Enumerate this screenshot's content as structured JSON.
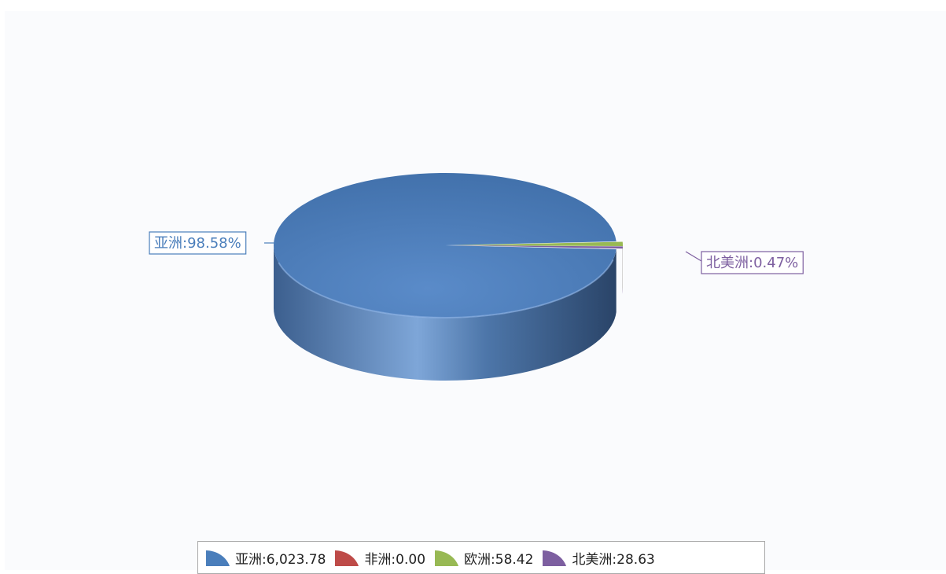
{
  "chart_data": {
    "type": "pie",
    "slices": [
      {
        "name": "亚洲",
        "value": 6023.78,
        "value_label": "6,023.78",
        "percent_label": "98.58%",
        "color": "#4a7ebb"
      },
      {
        "name": "非洲",
        "value": 0.0,
        "value_label": "0.00",
        "percent_label": "",
        "color": "#be4b48"
      },
      {
        "name": "欧洲",
        "value": 58.42,
        "value_label": "58.42",
        "percent_label": "",
        "color": "#98b954"
      },
      {
        "name": "北美洲",
        "value": 28.63,
        "value_label": "28.63",
        "percent_label": "0.47%",
        "color": "#7d5fa0"
      }
    ],
    "legend_position": "bottom",
    "style": "3d"
  },
  "data_labels": {
    "asia": "亚洲:98.58%",
    "north_america": "北美洲:0.47%"
  },
  "legend": {
    "items": [
      {
        "label": "亚洲:6,023.78",
        "color": "#4a7ebb"
      },
      {
        "label": "非洲:0.00",
        "color": "#be4b48"
      },
      {
        "label": "欧洲:58.42",
        "color": "#98b954"
      },
      {
        "label": "北美洲:28.63",
        "color": "#7d5fa0"
      }
    ]
  }
}
